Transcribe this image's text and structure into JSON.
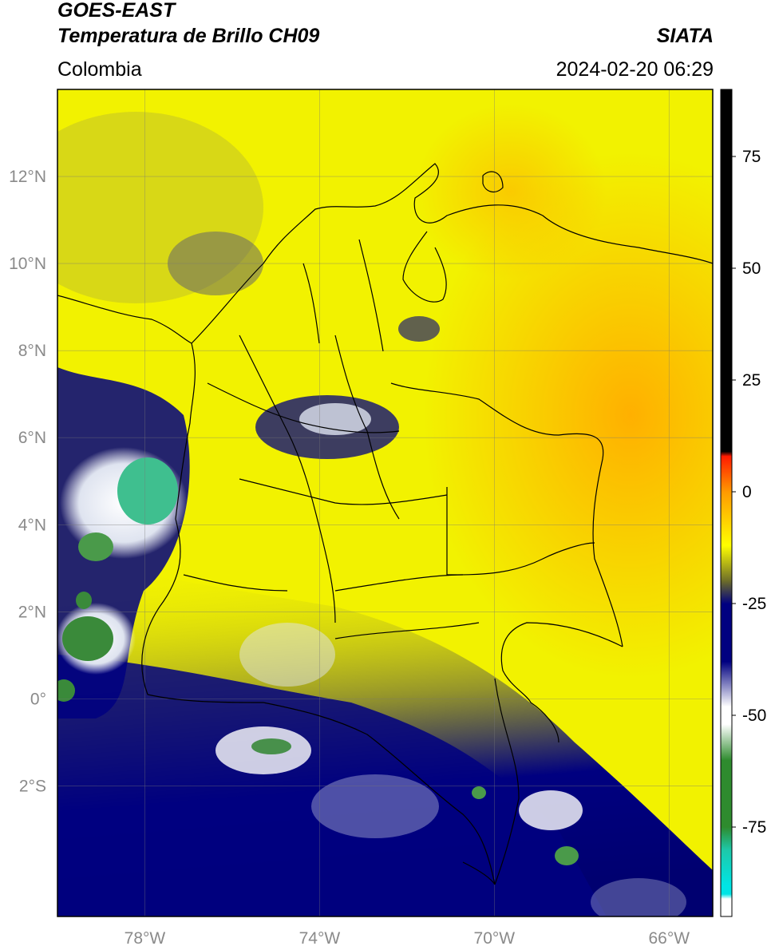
{
  "header": {
    "satellite": "GOES-EAST",
    "product": "Temperatura de Brillo CH09",
    "organization": "SIATA",
    "region": "Colombia",
    "timestamp": "2024-02-20 06:29"
  },
  "map": {
    "lon_range": [
      -80,
      -65
    ],
    "lat_range": [
      -5,
      14
    ],
    "lat_ticks": [
      {
        "value": 12,
        "label": "12°N"
      },
      {
        "value": 10,
        "label": "10°N"
      },
      {
        "value": 8,
        "label": "8°N"
      },
      {
        "value": 6,
        "label": "6°N"
      },
      {
        "value": 4,
        "label": "4°N"
      },
      {
        "value": 2,
        "label": "2°N"
      },
      {
        "value": 0,
        "label": "0°"
      },
      {
        "value": -2,
        "label": "2°S"
      }
    ],
    "lon_ticks": [
      {
        "value": -78,
        "label": "78°W"
      },
      {
        "value": -74,
        "label": "74°W"
      },
      {
        "value": -70,
        "label": "70°W"
      },
      {
        "value": -66,
        "label": "66°W"
      }
    ],
    "grid": true
  },
  "colorbar": {
    "range": [
      -95,
      90
    ],
    "ticks": [
      {
        "value": 75,
        "label": "75"
      },
      {
        "value": 50,
        "label": "50"
      },
      {
        "value": 25,
        "label": "25"
      },
      {
        "value": 0,
        "label": "0"
      },
      {
        "value": -25,
        "label": "-25"
      },
      {
        "value": -50,
        "label": "-50"
      },
      {
        "value": -75,
        "label": "-75"
      }
    ],
    "colors": {
      "black": "#000000",
      "red": "#ff1a00",
      "orange": "#ff9a00",
      "yellow": "#ffff00",
      "olive": "#6b6b2a",
      "navy": "#000080",
      "white": "#ffffff",
      "green": "#2e8b2e",
      "teal": "#1ec8a8",
      "cyan": "#00e5e5"
    }
  }
}
